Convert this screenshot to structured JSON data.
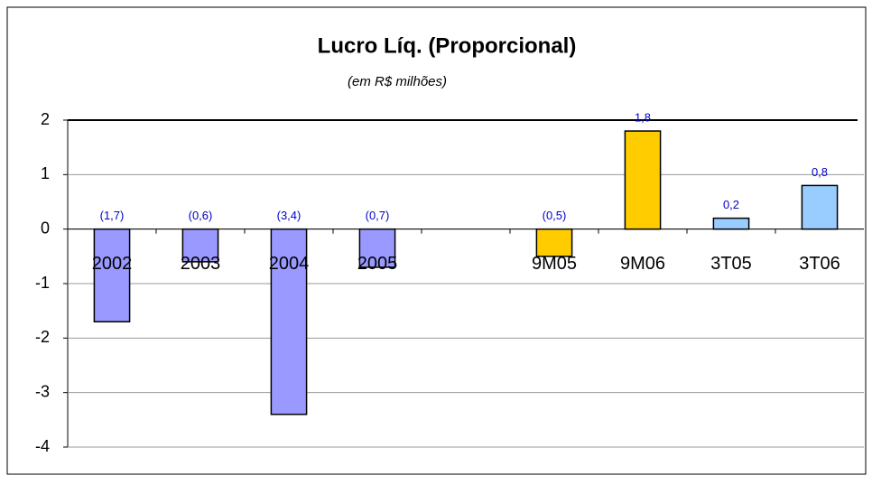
{
  "chart_data": {
    "type": "bar",
    "title": "Lucro Líq. (Proporcional)",
    "subtitle": "(em R$ milhões)",
    "categories": [
      "2002",
      "2003",
      "2004",
      "2005",
      null,
      "9M05",
      "9M06",
      "3T05",
      "3T06"
    ],
    "values": [
      -1.7,
      -0.6,
      -3.4,
      -0.7,
      null,
      -0.5,
      1.8,
      0.2,
      0.8
    ],
    "value_labels": [
      "(1,7)",
      "(0,6)",
      "(3,4)",
      "(0,7)",
      null,
      "(0,5)",
      "1,8",
      "0,2",
      "0,8"
    ],
    "colors": [
      "#9999ff",
      "#9999ff",
      "#9999ff",
      "#9999ff",
      null,
      "#ffcc00",
      "#ffcc00",
      "#99ccff",
      "#99ccff"
    ],
    "ylim": [
      -4,
      2
    ],
    "yticks": [
      -4,
      -3,
      -2,
      -1,
      0,
      1,
      2
    ],
    "grid": true
  }
}
